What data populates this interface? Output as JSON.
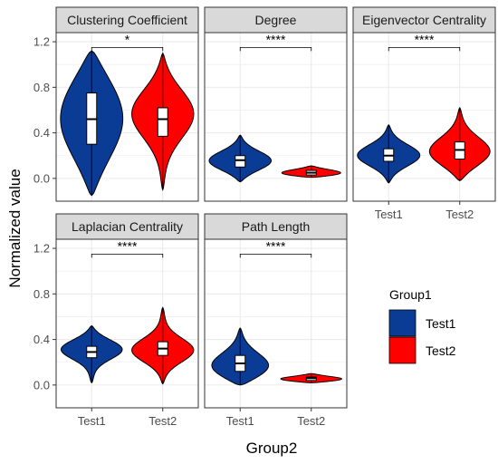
{
  "chart_data": {
    "type": "violin",
    "xlabel": "Group2",
    "ylabel": "Normalized value",
    "categories": [
      "Test1",
      "Test2"
    ],
    "y_ticks": [
      "0.0",
      "0.4",
      "0.8",
      "1.2"
    ],
    "ylim": [
      -0.2,
      1.28
    ],
    "grid": true,
    "legend": {
      "title": "Group1",
      "position": "right",
      "entries": [
        {
          "name": "Test1",
          "color": "#0A3C96"
        },
        {
          "name": "Test2",
          "color": "#FF0000"
        }
      ]
    },
    "panels": [
      {
        "title": "Clustering Coefficient",
        "significance": "*",
        "series": [
          {
            "name": "Test1",
            "min": -0.15,
            "q1": 0.3,
            "median": 0.52,
            "q3": 0.75,
            "max": 1.12,
            "density_peaks": [
              0.55
            ]
          },
          {
            "name": "Test2",
            "min": -0.1,
            "q1": 0.37,
            "median": 0.52,
            "q3": 0.62,
            "max": 1.1,
            "density_peaks": [
              0.58
            ]
          }
        ]
      },
      {
        "title": "Degree",
        "significance": "****",
        "series": [
          {
            "name": "Test1",
            "min": -0.03,
            "q1": 0.1,
            "median": 0.16,
            "q3": 0.2,
            "max": 0.38,
            "density_peaks": [
              0.15
            ]
          },
          {
            "name": "Test2",
            "min": 0.01,
            "q1": 0.03,
            "median": 0.05,
            "q3": 0.07,
            "max": 0.11,
            "density_peaks": [
              0.04
            ]
          }
        ]
      },
      {
        "title": "Eigenvector Centrality",
        "significance": "****",
        "series": [
          {
            "name": "Test1",
            "min": -0.04,
            "q1": 0.15,
            "median": 0.2,
            "q3": 0.26,
            "max": 0.47,
            "density_peaks": [
              0.2
            ]
          },
          {
            "name": "Test2",
            "min": -0.02,
            "q1": 0.17,
            "median": 0.25,
            "q3": 0.32,
            "max": 0.62,
            "density_peaks": [
              0.22
            ]
          }
        ]
      },
      {
        "title": "Laplacian Centrality",
        "significance": "****",
        "series": [
          {
            "name": "Test1",
            "min": 0.02,
            "q1": 0.24,
            "median": 0.29,
            "q3": 0.34,
            "max": 0.52,
            "density_peaks": [
              0.32
            ]
          },
          {
            "name": "Test2",
            "min": 0.01,
            "q1": 0.26,
            "median": 0.32,
            "q3": 0.38,
            "max": 0.68,
            "density_peaks": [
              0.3
            ]
          }
        ]
      },
      {
        "title": "Path Length",
        "significance": "****",
        "series": [
          {
            "name": "Test1",
            "min": 0.0,
            "q1": 0.12,
            "median": 0.19,
            "q3": 0.26,
            "max": 0.5,
            "density_peaks": [
              0.14
            ]
          },
          {
            "name": "Test2",
            "min": 0.02,
            "q1": 0.04,
            "median": 0.06,
            "q3": 0.07,
            "max": 0.1,
            "density_peaks": [
              0.05
            ]
          }
        ]
      }
    ]
  }
}
